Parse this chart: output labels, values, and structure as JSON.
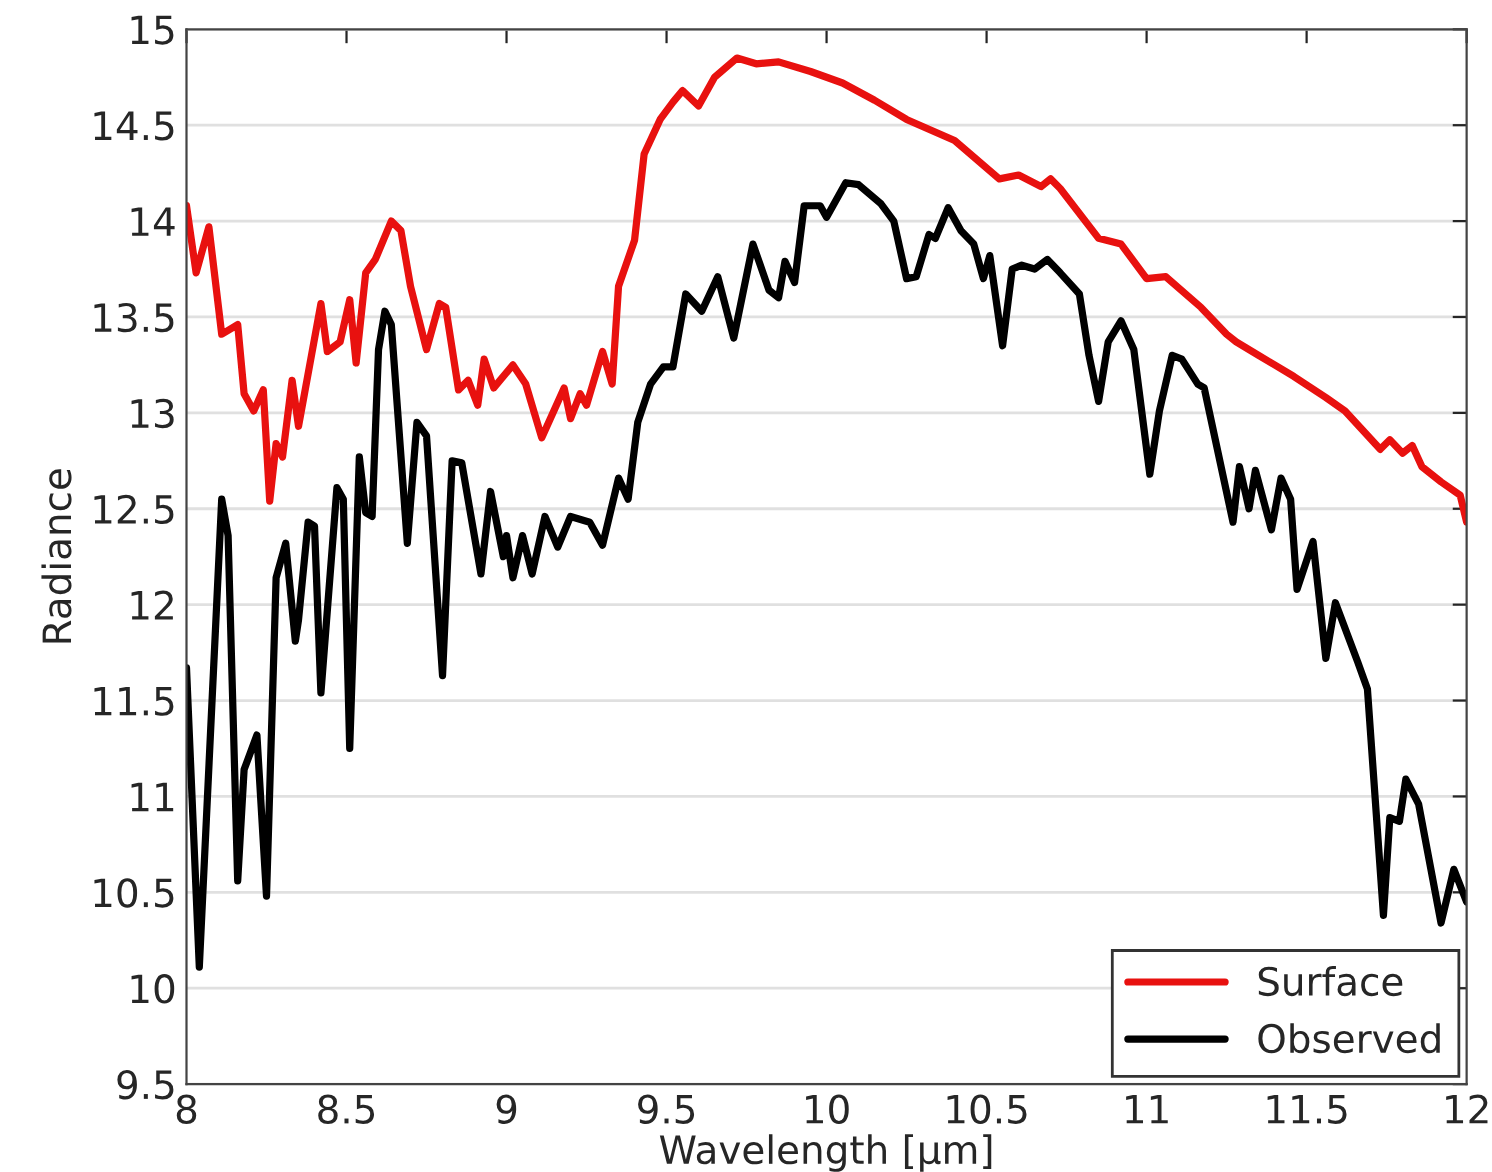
{
  "chart_data": {
    "type": "line",
    "xlabel": "Wavelength [μm]",
    "ylabel": "Radiance",
    "xlim": [
      8,
      12
    ],
    "ylim": [
      9.5,
      15
    ],
    "xticks": [
      8,
      8.5,
      9,
      9.5,
      10,
      10.5,
      11,
      11.5,
      12
    ],
    "yticks": [
      9.5,
      10,
      10.5,
      11,
      11.5,
      12,
      12.5,
      13,
      13.5,
      14,
      14.5,
      15
    ],
    "grid": "y",
    "legend": "bottom right",
    "line_style": "solid",
    "marker": "none",
    "series": [
      {
        "name": "Surface",
        "color": "#e8110f",
        "x": [
          8.0,
          8.03,
          8.07,
          8.11,
          8.16,
          8.18,
          8.21,
          8.24,
          8.26,
          8.28,
          8.3,
          8.33,
          8.35,
          8.42,
          8.44,
          8.48,
          8.51,
          8.53,
          8.56,
          8.59,
          8.64,
          8.67,
          8.7,
          8.75,
          8.79,
          8.81,
          8.85,
          8.88,
          8.91,
          8.93,
          8.96,
          9.02,
          9.06,
          9.11,
          9.18,
          9.2,
          9.23,
          9.25,
          9.3,
          9.33,
          9.35,
          9.4,
          9.43,
          9.48,
          9.52,
          9.55,
          9.6,
          9.65,
          9.72,
          9.78,
          9.85,
          9.95,
          10.05,
          10.15,
          10.25,
          10.4,
          10.54,
          10.6,
          10.67,
          10.7,
          10.73,
          10.85,
          10.92,
          11.0,
          11.06,
          11.17,
          11.25,
          11.28,
          11.35,
          11.46,
          11.56,
          11.62,
          11.73,
          11.76,
          11.8,
          11.83,
          11.86,
          11.92,
          11.98,
          12.0
        ],
        "values": [
          14.08,
          13.73,
          13.97,
          13.41,
          13.46,
          13.1,
          13.01,
          13.12,
          12.54,
          12.84,
          12.77,
          13.17,
          12.93,
          13.57,
          13.32,
          13.37,
          13.59,
          13.26,
          13.73,
          13.8,
          14.0,
          13.95,
          13.66,
          13.33,
          13.57,
          13.55,
          13.12,
          13.17,
          13.04,
          13.28,
          13.13,
          13.25,
          13.15,
          12.87,
          13.13,
          12.97,
          13.1,
          13.04,
          13.32,
          13.15,
          13.66,
          13.9,
          14.35,
          14.53,
          14.62,
          14.68,
          14.6,
          14.75,
          14.85,
          14.82,
          14.83,
          14.78,
          14.72,
          14.63,
          14.53,
          14.42,
          14.22,
          14.24,
          14.18,
          14.22,
          14.17,
          13.91,
          13.88,
          13.7,
          13.71,
          13.55,
          13.41,
          13.37,
          13.3,
          13.19,
          13.08,
          13.01,
          12.81,
          12.86,
          12.79,
          12.83,
          12.72,
          12.64,
          12.57,
          12.43
        ]
      },
      {
        "name": "Observed",
        "color": "#000000",
        "x": [
          8.0,
          8.04,
          8.11,
          8.13,
          8.16,
          8.18,
          8.22,
          8.25,
          8.28,
          8.31,
          8.34,
          8.35,
          8.38,
          8.4,
          8.42,
          8.47,
          8.49,
          8.51,
          8.54,
          8.56,
          8.58,
          8.6,
          8.62,
          8.64,
          8.69,
          8.72,
          8.75,
          8.8,
          8.83,
          8.86,
          8.92,
          8.95,
          8.99,
          9.0,
          9.02,
          9.05,
          9.08,
          9.12,
          9.16,
          9.2,
          9.26,
          9.3,
          9.35,
          9.38,
          9.41,
          9.45,
          9.49,
          9.52,
          9.56,
          9.61,
          9.66,
          9.71,
          9.77,
          9.82,
          9.85,
          9.87,
          9.9,
          9.93,
          9.98,
          10.0,
          10.06,
          10.1,
          10.17,
          10.21,
          10.25,
          10.28,
          10.32,
          10.34,
          10.38,
          10.42,
          10.46,
          10.49,
          10.51,
          10.55,
          10.58,
          10.61,
          10.65,
          10.69,
          10.73,
          10.79,
          10.82,
          10.85,
          10.88,
          10.92,
          10.96,
          11.01,
          11.04,
          11.08,
          11.11,
          11.16,
          11.18,
          11.27,
          11.29,
          11.32,
          11.34,
          11.39,
          11.42,
          11.45,
          11.47,
          11.52,
          11.56,
          11.59,
          11.66,
          11.69,
          11.74,
          11.76,
          11.79,
          11.81,
          11.85,
          11.92,
          11.96,
          12.0
        ],
        "values": [
          11.67,
          10.11,
          12.55,
          12.36,
          10.56,
          11.14,
          11.32,
          10.48,
          12.14,
          12.32,
          11.81,
          11.92,
          12.43,
          12.41,
          11.54,
          12.61,
          12.55,
          11.25,
          12.77,
          12.48,
          12.46,
          13.33,
          13.53,
          13.46,
          12.32,
          12.95,
          12.88,
          11.63,
          12.75,
          12.74,
          12.16,
          12.59,
          12.25,
          12.36,
          12.14,
          12.36,
          12.16,
          12.46,
          12.3,
          12.46,
          12.43,
          12.31,
          12.66,
          12.55,
          12.95,
          13.15,
          13.24,
          13.24,
          13.62,
          13.53,
          13.71,
          13.39,
          13.88,
          13.64,
          13.6,
          13.79,
          13.68,
          14.08,
          14.08,
          14.02,
          14.2,
          14.19,
          14.09,
          14.0,
          13.7,
          13.71,
          13.93,
          13.91,
          14.07,
          13.95,
          13.88,
          13.7,
          13.82,
          13.35,
          13.75,
          13.77,
          13.75,
          13.8,
          13.73,
          13.62,
          13.3,
          13.06,
          13.37,
          13.48,
          13.33,
          12.68,
          13.01,
          13.3,
          13.28,
          13.15,
          13.13,
          12.43,
          12.72,
          12.5,
          12.7,
          12.39,
          12.66,
          12.55,
          12.08,
          12.33,
          11.72,
          12.01,
          11.7,
          11.56,
          10.38,
          10.89,
          10.87,
          11.09,
          10.96,
          10.34,
          10.62,
          10.45
        ]
      }
    ]
  }
}
